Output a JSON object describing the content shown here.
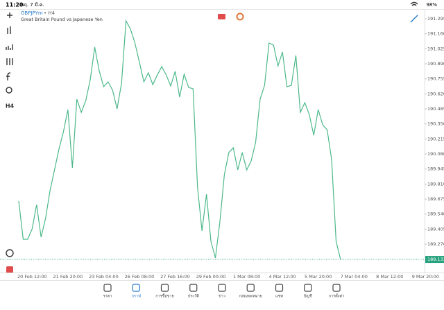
{
  "status_bar": {
    "time": "11:20",
    "date": "พฤ. 7 มี.ค.",
    "battery": "98%"
  },
  "symbol": {
    "name": "GBPJPYm",
    "timeframe": "• H4",
    "description": "Great Britain Pound vs Japanese Yen"
  },
  "toolbar": {
    "timeframe_button": "H4"
  },
  "chart_data": {
    "type": "line",
    "color": "#4cb88a",
    "categories": [
      null,
      null,
      null,
      "20 Feb 12:00",
      null,
      null,
      null,
      null,
      null,
      null,
      null,
      "21 Feb 20:00",
      null,
      null,
      null,
      null,
      null,
      null,
      null,
      "23 Feb 04:00",
      null,
      null,
      null,
      null,
      null,
      null,
      null,
      "26 Feb 08:00",
      null,
      null,
      null,
      null,
      null,
      null,
      null,
      "27 Feb 16:00",
      null,
      null,
      null,
      null,
      null,
      null,
      null,
      "29 Feb 00:00",
      null,
      null,
      null,
      null,
      null,
      null,
      null,
      "1 Mar 08:00",
      null,
      null,
      null,
      null,
      null,
      null,
      null,
      "4 Mar 12:00",
      null,
      null,
      null,
      null,
      null,
      null,
      null,
      "5 Mar 20:00",
      null,
      null,
      null,
      null,
      null,
      null,
      null,
      "7 Mar 04:00",
      null,
      null,
      null,
      null,
      null,
      null,
      null,
      "8 Mar 12:00",
      null,
      null,
      null,
      null,
      null,
      null,
      null,
      "9 Mar 20:00"
    ],
    "values": [
      189.657,
      189.314,
      189.314,
      189.407,
      189.625,
      189.333,
      189.501,
      189.75,
      189.937,
      190.124,
      190.28,
      190.479,
      189.956,
      190.572,
      190.454,
      190.56,
      190.747,
      191.04,
      190.828,
      190.684,
      190.728,
      190.653,
      190.485,
      190.716,
      191.276,
      191.202,
      191.077,
      190.903,
      190.728,
      190.809,
      190.703,
      190.79,
      190.865,
      190.79,
      190.691,
      190.822,
      190.591,
      190.797,
      190.678,
      190.666,
      189.781,
      189.389,
      189.719,
      189.295,
      189.146,
      189.47,
      189.893,
      190.093,
      190.136,
      189.937,
      190.093,
      189.937,
      190.018,
      190.186,
      190.572,
      190.697,
      191.077,
      191.058,
      190.871,
      190.996,
      190.684,
      190.697,
      190.965,
      190.454,
      190.541,
      190.435,
      190.248,
      190.479,
      190.342,
      190.298,
      190.03,
      189.295,
      189.133,
      null,
      null,
      null,
      null,
      null,
      null,
      null,
      null,
      null,
      null,
      null,
      null,
      null,
      null,
      null,
      null,
      null,
      null,
      null
    ],
    "ylim": [
      189.015,
      191.376
    ],
    "yticks": [
      191.295,
      {
        "value": 191.16,
        "label": "191.160"
      },
      191.025,
      {
        "value": 190.89,
        "label": "190.890"
      },
      190.755,
      {
        "value": 190.62,
        "label": "190.620"
      },
      190.485,
      {
        "value": 190.35,
        "label": "190.350"
      },
      190.215,
      {
        "value": 190.08,
        "label": "190.080"
      },
      189.945,
      {
        "value": 189.81,
        "label": "189.810"
      },
      189.675,
      {
        "value": 189.54,
        "label": "189.540"
      },
      189.405,
      {
        "value": 189.27,
        "label": "189.270"
      }
    ],
    "current_price": 189.133,
    "current_price_color": "#26a17b"
  },
  "nav": [
    {
      "label": "ราคา"
    },
    {
      "label": "กราฟ",
      "active": true
    },
    {
      "label": "การซื้อขาย"
    },
    {
      "label": "ประวัติ"
    },
    {
      "label": "ข่าว"
    },
    {
      "label": "กล่องจดหมาย"
    },
    {
      "label": "แชท"
    },
    {
      "label": "บัญชี"
    },
    {
      "label": "การตั้งค่า"
    }
  ]
}
